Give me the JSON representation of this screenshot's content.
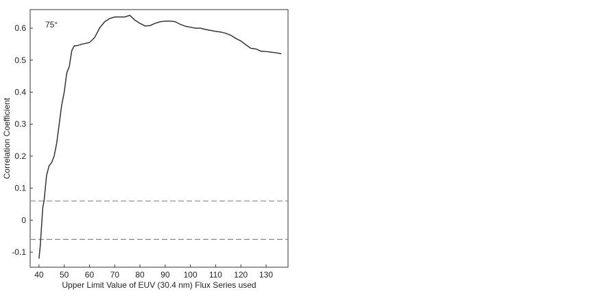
{
  "chart_data": {
    "type": "line",
    "annotation": "75°",
    "xlabel": "Upper Limit Value of EUV (30.4 nm) Flux Series used",
    "ylabel": "Correlation Coefficient",
    "x": [
      40,
      40.5,
      41,
      41.5,
      42,
      42.5,
      43,
      44,
      45,
      46,
      46.5,
      47,
      48,
      49,
      50,
      51,
      52,
      53,
      54,
      55,
      57,
      60,
      62,
      64,
      66,
      68,
      70,
      72,
      74,
      76,
      78,
      80,
      82,
      84,
      86,
      88,
      90,
      92,
      94,
      96,
      98,
      100,
      102,
      104,
      106,
      108,
      110,
      112,
      114,
      116,
      118,
      120,
      122,
      124,
      126,
      128,
      130,
      132,
      134,
      136
    ],
    "series": [
      {
        "color": "#333333",
        "values": [
          -0.12,
          -0.08,
          -0.02,
          0.04,
          0.06,
          0.1,
          0.14,
          0.17,
          0.18,
          0.2,
          0.22,
          0.24,
          0.3,
          0.36,
          0.4,
          0.46,
          0.48,
          0.53,
          0.545,
          0.545,
          0.55,
          0.555,
          0.57,
          0.6,
          0.62,
          0.63,
          0.635,
          0.635,
          0.635,
          0.64,
          0.625,
          0.615,
          0.607,
          0.608,
          0.615,
          0.62,
          0.622,
          0.622,
          0.62,
          0.612,
          0.606,
          0.603,
          0.6,
          0.6,
          0.596,
          0.593,
          0.59,
          0.588,
          0.584,
          0.578,
          0.568,
          0.56,
          0.548,
          0.537,
          0.535,
          0.528,
          0.527,
          0.525,
          0.523,
          0.52
        ]
      }
    ],
    "hlines": [
      0.06,
      -0.06
    ],
    "hline_color": "#888888",
    "xlim": [
      36.5,
      138.7
    ],
    "ylim": [
      -0.147,
      0.658
    ],
    "xticks": [
      40,
      50,
      60,
      70,
      80,
      90,
      100,
      110,
      120,
      130
    ],
    "yticks": [
      -0.1,
      0,
      0.1,
      0.2,
      0.3,
      0.4,
      0.5,
      0.6
    ]
  }
}
